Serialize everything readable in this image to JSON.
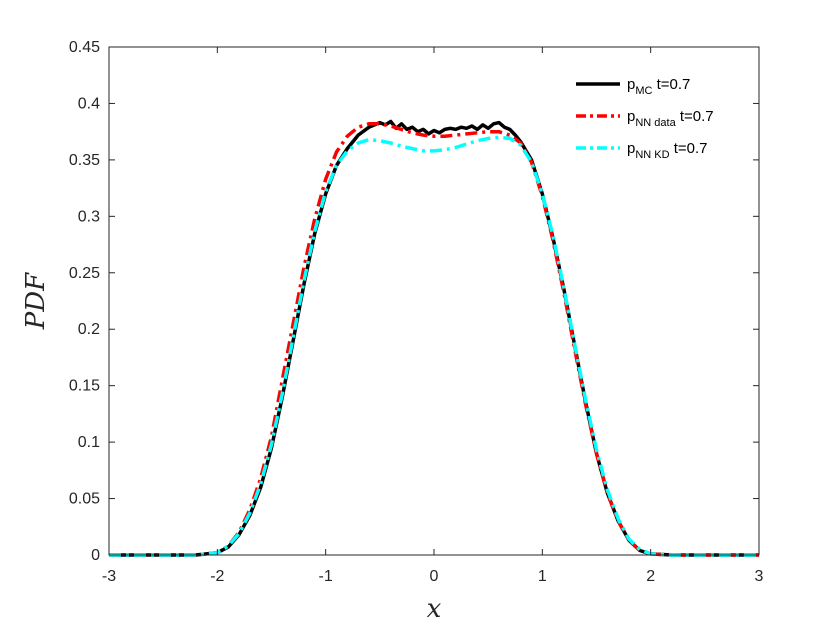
{
  "chart_data": {
    "type": "line",
    "xlabel": "x",
    "ylabel": "PDF",
    "xlim": [
      -3,
      3
    ],
    "ylim": [
      0,
      0.45
    ],
    "xticks": [
      "-3",
      "-2",
      "-1",
      "0",
      "1",
      "2",
      "3"
    ],
    "yticks": [
      "0",
      "0.05",
      "0.1",
      "0.15",
      "0.2",
      "0.25",
      "0.3",
      "0.35",
      "0.4",
      "0.45"
    ],
    "grid": false,
    "legend_position": "top-right",
    "series": [
      {
        "name": "p_MC t=0.7",
        "legend": {
          "main": "p",
          "sub": "MC",
          "suffix": " t=0.7"
        },
        "color": "#000000",
        "style": "solid",
        "x": [
          -3,
          -2.4,
          -2.2,
          -2.0,
          -1.9,
          -1.8,
          -1.7,
          -1.6,
          -1.5,
          -1.4,
          -1.3,
          -1.2,
          -1.1,
          -1.0,
          -0.9,
          -0.8,
          -0.7,
          -0.6,
          -0.5,
          -0.45,
          -0.4,
          -0.35,
          -0.3,
          -0.25,
          -0.2,
          -0.15,
          -0.1,
          -0.05,
          0.0,
          0.05,
          0.1,
          0.15,
          0.2,
          0.25,
          0.3,
          0.35,
          0.4,
          0.45,
          0.5,
          0.55,
          0.6,
          0.65,
          0.7,
          0.75,
          0.8,
          0.9,
          1.0,
          1.1,
          1.2,
          1.3,
          1.4,
          1.5,
          1.6,
          1.7,
          1.8,
          1.9,
          2.0,
          2.2,
          2.4,
          3.0
        ],
        "y": [
          0.0,
          0.0,
          0.0,
          0.002,
          0.007,
          0.018,
          0.035,
          0.06,
          0.095,
          0.14,
          0.19,
          0.24,
          0.285,
          0.32,
          0.345,
          0.36,
          0.372,
          0.379,
          0.383,
          0.381,
          0.384,
          0.378,
          0.382,
          0.377,
          0.379,
          0.375,
          0.377,
          0.373,
          0.376,
          0.374,
          0.377,
          0.378,
          0.377,
          0.379,
          0.378,
          0.38,
          0.377,
          0.381,
          0.378,
          0.382,
          0.383,
          0.379,
          0.377,
          0.372,
          0.366,
          0.35,
          0.32,
          0.28,
          0.235,
          0.185,
          0.135,
          0.09,
          0.055,
          0.03,
          0.013,
          0.004,
          0.001,
          0.0,
          0.0,
          0.0
        ]
      },
      {
        "name": "p_NN data t=0.7",
        "legend": {
          "main": "p",
          "sub": "NN data",
          "suffix": " t=0.7"
        },
        "color": "#ff0000",
        "style": "dashdot",
        "x": [
          -3,
          -2.4,
          -2.2,
          -2.0,
          -1.9,
          -1.8,
          -1.7,
          -1.6,
          -1.5,
          -1.4,
          -1.3,
          -1.2,
          -1.1,
          -1.0,
          -0.9,
          -0.8,
          -0.7,
          -0.6,
          -0.5,
          -0.4,
          -0.3,
          -0.2,
          -0.1,
          0.0,
          0.1,
          0.2,
          0.3,
          0.4,
          0.5,
          0.6,
          0.7,
          0.8,
          0.9,
          1.0,
          1.1,
          1.2,
          1.3,
          1.4,
          1.5,
          1.6,
          1.7,
          1.8,
          1.9,
          2.0,
          2.2,
          2.4,
          3.0
        ],
        "y": [
          0.0,
          0.0,
          0.0,
          0.002,
          0.008,
          0.02,
          0.04,
          0.068,
          0.105,
          0.155,
          0.205,
          0.255,
          0.298,
          0.333,
          0.357,
          0.371,
          0.379,
          0.382,
          0.382,
          0.38,
          0.377,
          0.374,
          0.372,
          0.371,
          0.371,
          0.372,
          0.373,
          0.374,
          0.375,
          0.375,
          0.372,
          0.365,
          0.348,
          0.318,
          0.278,
          0.232,
          0.182,
          0.133,
          0.09,
          0.055,
          0.03,
          0.013,
          0.004,
          0.001,
          0.0,
          0.0,
          0.0
        ]
      },
      {
        "name": "p_NN KD t=0.7",
        "legend": {
          "main": "p",
          "sub": "NN KD",
          "suffix": " t=0.7"
        },
        "color": "#00ffff",
        "style": "dashdot",
        "x": [
          -3,
          -2.4,
          -2.2,
          -2.0,
          -1.9,
          -1.8,
          -1.7,
          -1.6,
          -1.5,
          -1.4,
          -1.3,
          -1.2,
          -1.1,
          -1.0,
          -0.9,
          -0.8,
          -0.7,
          -0.6,
          -0.5,
          -0.4,
          -0.3,
          -0.2,
          -0.1,
          0.0,
          0.1,
          0.2,
          0.3,
          0.4,
          0.5,
          0.6,
          0.7,
          0.8,
          0.9,
          1.0,
          1.1,
          1.2,
          1.3,
          1.4,
          1.5,
          1.6,
          1.7,
          1.8,
          1.9,
          2.0,
          2.2,
          2.4,
          3.0
        ],
        "y": [
          0.0,
          0.0,
          0.0,
          0.002,
          0.008,
          0.019,
          0.037,
          0.063,
          0.098,
          0.143,
          0.193,
          0.243,
          0.287,
          0.322,
          0.345,
          0.358,
          0.365,
          0.368,
          0.367,
          0.365,
          0.362,
          0.36,
          0.358,
          0.358,
          0.359,
          0.361,
          0.364,
          0.367,
          0.369,
          0.37,
          0.369,
          0.363,
          0.348,
          0.32,
          0.282,
          0.236,
          0.186,
          0.137,
          0.093,
          0.058,
          0.032,
          0.014,
          0.005,
          0.001,
          0.0,
          0.0,
          0.0
        ]
      }
    ]
  }
}
